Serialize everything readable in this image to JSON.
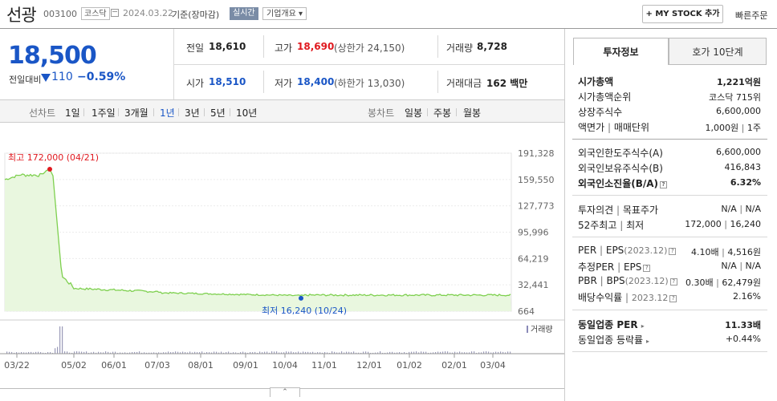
{
  "header": {
    "stock_name": "선광",
    "stock_code": "003100",
    "market": "코스닥",
    "date": "2024.03.22",
    "basis": "기준(장마감)",
    "realtime": "실시간",
    "overview": "기업개요",
    "overview_arrow": "▾",
    "mystock": "+ MY STOCK 추가",
    "quick_order": "빠른주문"
  },
  "quote": {
    "price": "18,500",
    "vs_label": "전일대비",
    "change": "110",
    "change_pct": "−0.59%",
    "prev_label": "전일",
    "prev": "18,610",
    "high_label": "고가",
    "high": "18,690",
    "upper_limit": "(상한가 24,150)",
    "volume_label": "거래량",
    "volume": "8,728",
    "open_label": "시가",
    "open": "18,510",
    "low_label": "저가",
    "low": "18,400",
    "lower_limit": "(하한가 13,030)",
    "amount_label": "거래대금",
    "amount": "162 백만"
  },
  "tabs": {
    "line_label": "선차트",
    "line": [
      "1일",
      "1주일",
      "3개월",
      "1년",
      "3년",
      "5년",
      "10년"
    ],
    "selected": "1년",
    "candle_label": "봉차트",
    "candle": [
      "일봉",
      "주봉",
      "월봉"
    ]
  },
  "chart_data": {
    "type": "line",
    "y_ticks": [
      "191,328",
      "159,550",
      "127,773",
      "95,996",
      "64,219",
      "32,441",
      "664"
    ],
    "ylim": [
      664,
      191328
    ],
    "x_ticks": [
      "03/22",
      "05/02",
      "06/01",
      "07/03",
      "08/01",
      "09/01",
      "10/04",
      "11/01",
      "12/01",
      "01/02",
      "02/01",
      "03/04"
    ],
    "high_annotation": "최고 172,000 (04/21)",
    "low_annotation": "최저 16,240 (10/24)",
    "volume_label": "거래량",
    "line_color": "#7ed04f",
    "fill_color": "#e9f7df",
    "high_color": "#e0191f",
    "low_color": "#1a56c6"
  },
  "side": {
    "tab_invest": "투자정보",
    "tab_orderbook": "호가 10단계",
    "market_cap_label": "시가총액",
    "market_cap": "1,221억원",
    "rank_label": "시가총액순위",
    "rank": "코스닥 715위",
    "shares_label": "상장주식수",
    "shares": "6,600,000",
    "par_label": "액면가",
    "unit_label": "매매단위",
    "par": "1,000원",
    "unit": "1주",
    "foreign_limit_label": "외국인한도주식수(A)",
    "foreign_limit": "6,600,000",
    "foreign_hold_label": "외국인보유주식수(B)",
    "foreign_hold": "416,843",
    "foreign_ratio_label": "외국인소진율(B/A)",
    "foreign_ratio": "6.32%",
    "opinion_label": "투자의견",
    "target_label": "목표주가",
    "opinion": "N/A",
    "target": "N/A",
    "w52_label": "52주최고",
    "w52_low_label": "최저",
    "w52_high": "172,000",
    "w52_low": "16,240",
    "per_label": "PER",
    "eps_label": "EPS",
    "eps_date": "(2023.12)",
    "per": "4.10배",
    "eps": "4,516원",
    "est_per_label": "추정PER",
    "est_eps_label": "EPS",
    "est_per": "N/A",
    "est_eps": "N/A",
    "pbr_label": "PBR",
    "bps_label": "BPS",
    "bps_date": "(2023.12)",
    "pbr": "0.30배",
    "bps": "62,479원",
    "div_label": "배당수익률",
    "div_date": "2023.12",
    "div": "2.16%",
    "sector_per_label": "동일업종 PER",
    "sector_per": "11.33배",
    "sector_rate_label": "동일업종 등락률",
    "sector_rate": "+0.44%",
    "help": "?"
  },
  "footer": {
    "collapse": "⌃"
  }
}
